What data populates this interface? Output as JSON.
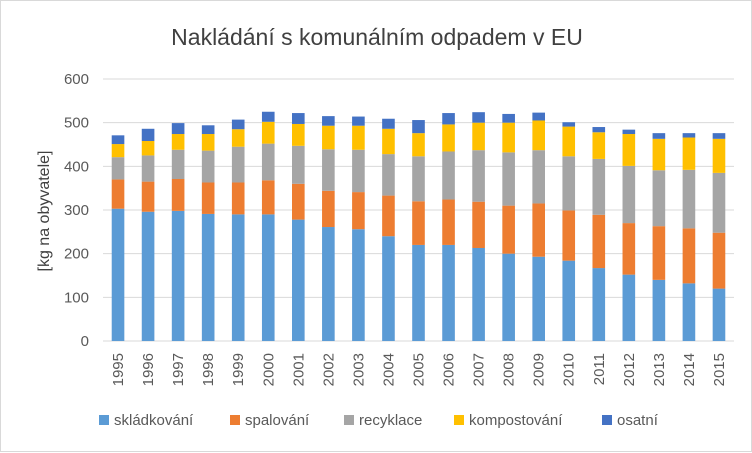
{
  "chart_data": {
    "type": "bar",
    "stacked": true,
    "title": "Nakládání s komunálním odpadem v EU",
    "xlabel": "",
    "ylabel": "[kg na obyvatele]",
    "ylim": [
      0,
      600
    ],
    "yticks": [
      0,
      100,
      200,
      300,
      400,
      500,
      600
    ],
    "grid": true,
    "legend_position": "bottom",
    "categories": [
      "1995",
      "1996",
      "1997",
      "1998",
      "1999",
      "2000",
      "2001",
      "2002",
      "2003",
      "2004",
      "2005",
      "2006",
      "2007",
      "2008",
      "2009",
      "2010",
      "2011",
      "2012",
      "2013",
      "2014",
      "2015"
    ],
    "series": [
      {
        "name": "skládkování",
        "color": "#5B9BD5",
        "values": [
          303,
          296,
          298,
          291,
          290,
          290,
          278,
          261,
          256,
          240,
          220,
          220,
          213,
          200,
          193,
          184,
          167,
          152,
          140,
          132,
          120
        ]
      },
      {
        "name": "spalování",
        "color": "#ED7D31",
        "values": [
          67,
          69,
          73,
          72,
          73,
          78,
          82,
          83,
          85,
          93,
          100,
          104,
          106,
          110,
          122,
          115,
          122,
          118,
          123,
          126,
          128
        ]
      },
      {
        "name": "recyklace",
        "color": "#A5A5A5",
        "values": [
          51,
          60,
          67,
          73,
          82,
          84,
          87,
          95,
          97,
          95,
          103,
          110,
          118,
          122,
          122,
          124,
          128,
          131,
          128,
          134,
          137
        ]
      },
      {
        "name": "kompostování",
        "color": "#FFC000",
        "values": [
          30,
          33,
          36,
          38,
          40,
          50,
          50,
          54,
          55,
          58,
          53,
          62,
          63,
          68,
          68,
          68,
          61,
          73,
          72,
          74,
          78
        ]
      },
      {
        "name": "osatní",
        "color": "#4472C4",
        "values": [
          20,
          28,
          25,
          20,
          22,
          23,
          25,
          22,
          21,
          23,
          30,
          26,
          24,
          20,
          18,
          10,
          12,
          10,
          13,
          10,
          13
        ]
      }
    ]
  }
}
